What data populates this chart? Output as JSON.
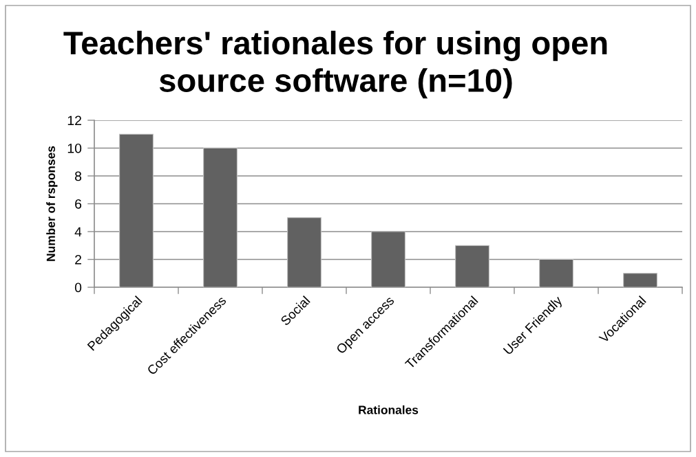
{
  "chart_data": {
    "type": "bar",
    "title": "Teachers' rationales for using open\nsource software (n=10)",
    "xlabel": "Rationales",
    "ylabel": "Number of rsponses",
    "categories": [
      "Pedagogical",
      "Cost effectiveness",
      "Social",
      "Open access",
      "Transformational",
      "User Friendly",
      "Vocational"
    ],
    "values": [
      11,
      10,
      5,
      4,
      3,
      2,
      1
    ],
    "color": "#616161",
    "ylim": [
      0,
      12
    ],
    "yticks": [
      0,
      2,
      4,
      6,
      8,
      10,
      12
    ],
    "grid": "y"
  }
}
